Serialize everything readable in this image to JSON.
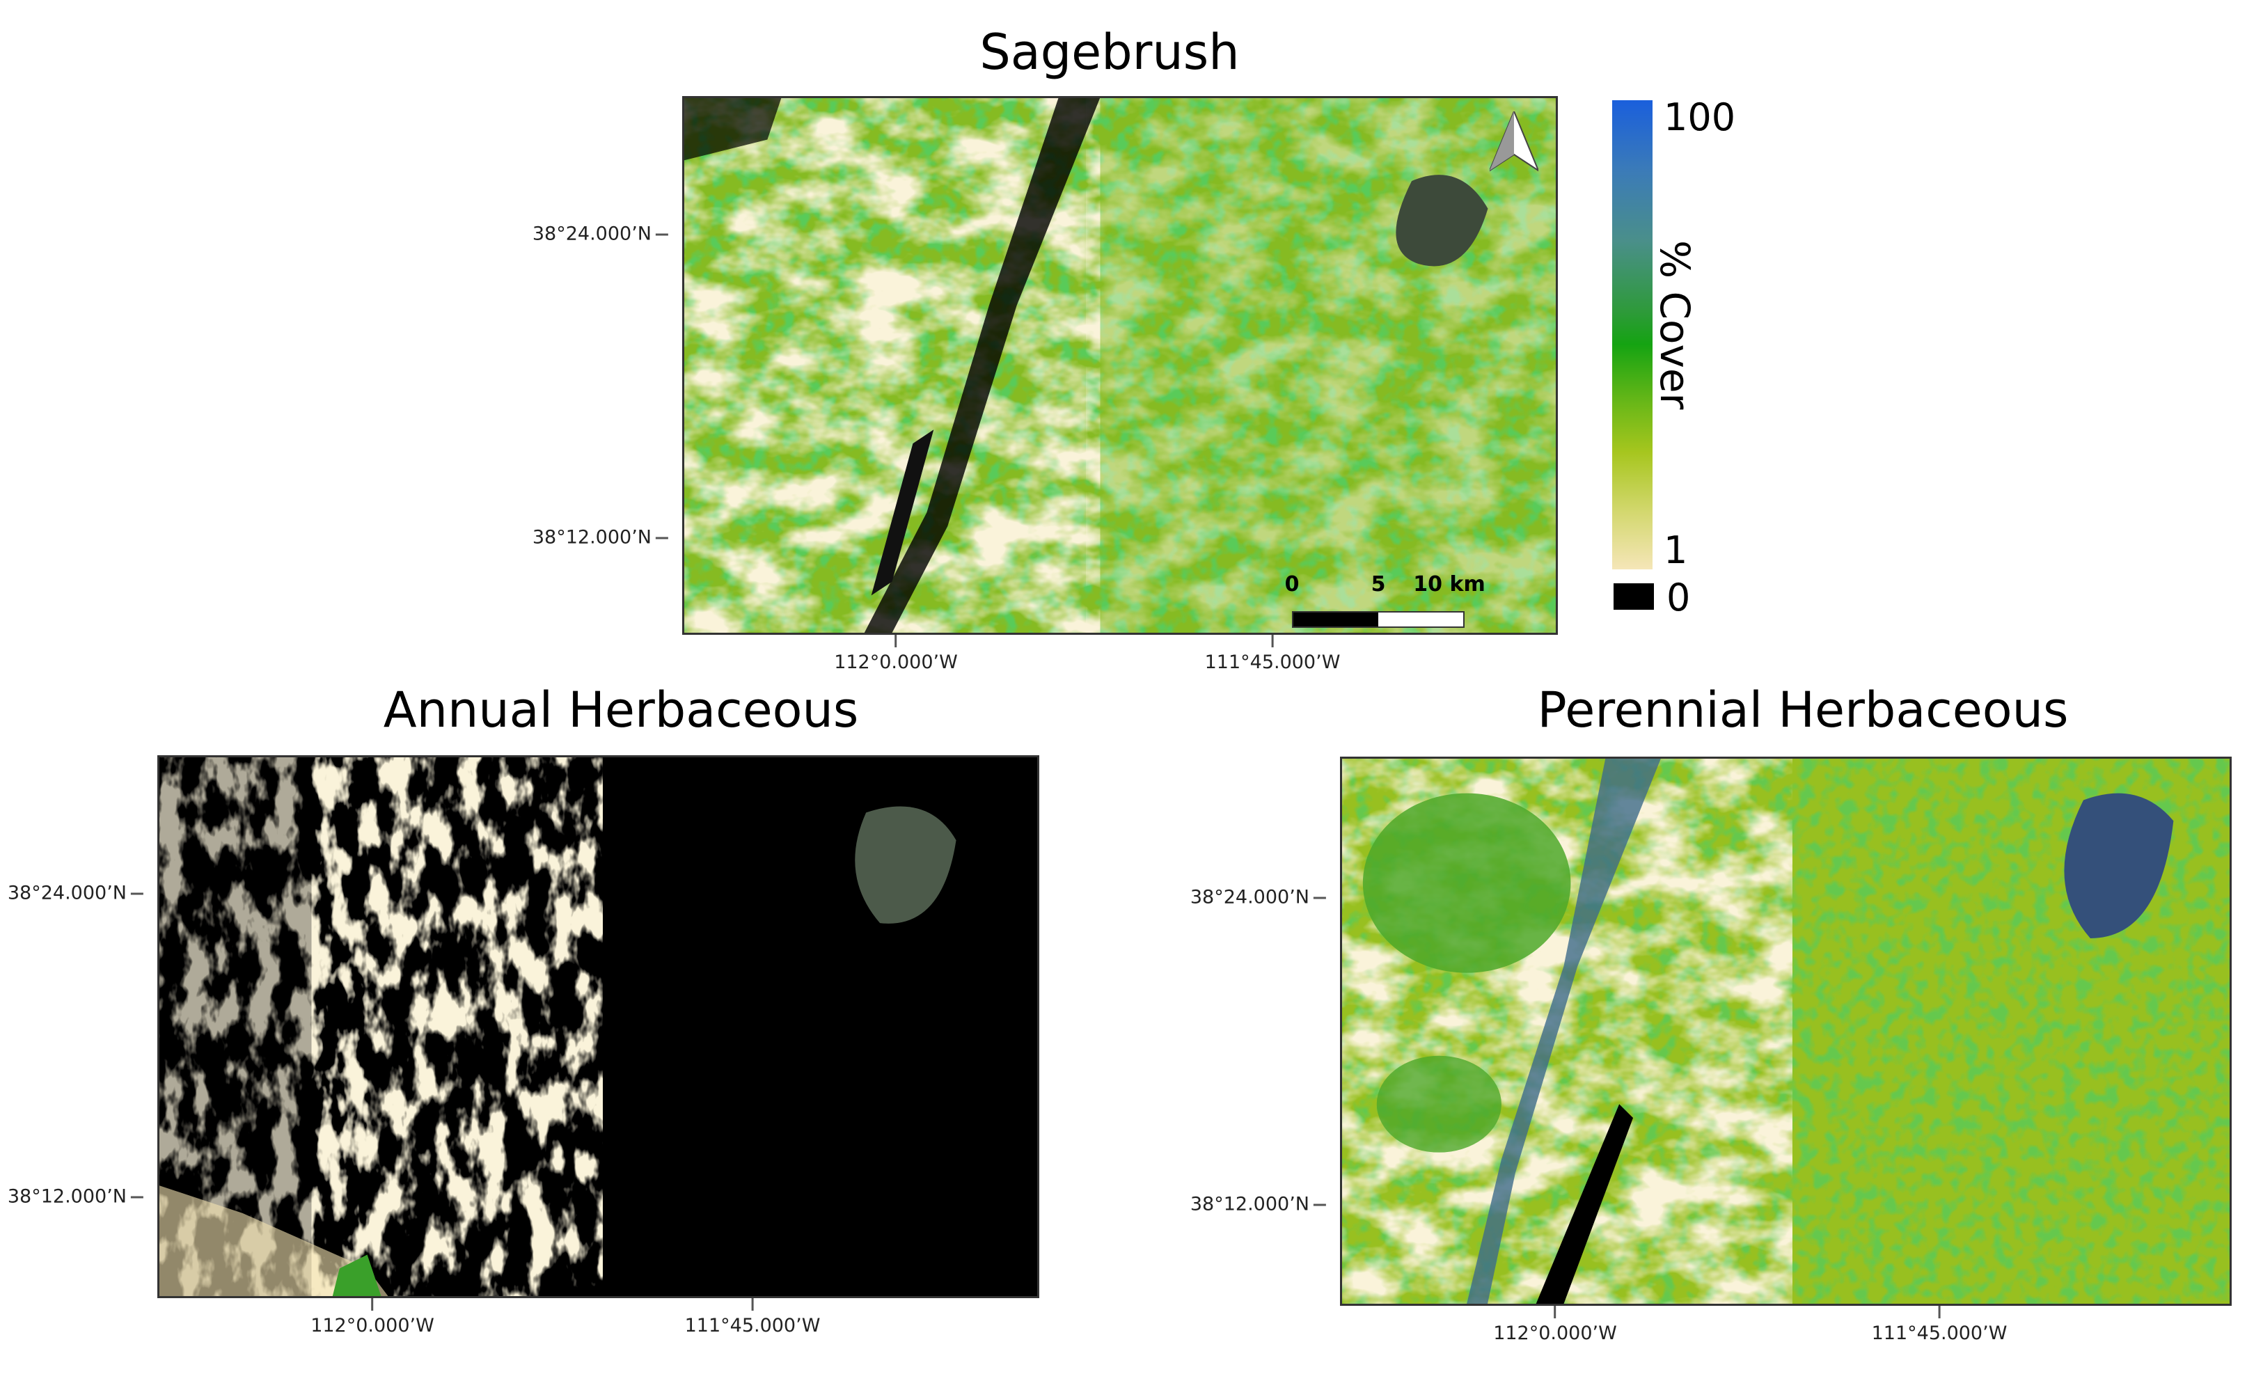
{
  "panels": [
    {
      "title": "Sagebrush",
      "lat_ticks": [
        "38°24.000’N",
        "38°12.000’N"
      ],
      "lon_ticks": [
        "112°0.000’W",
        "111°45.000’W"
      ],
      "base_color": "#8fbf2a"
    },
    {
      "title": "Annual Herbaceous",
      "lat_ticks": [
        "38°24.000’N",
        "38°12.000’N"
      ],
      "lon_ticks": [
        "112°0.000’W",
        "111°45.000’W"
      ],
      "base_color": "#000000"
    },
    {
      "title": "Perennial Herbaceous",
      "lat_ticks": [
        "38°24.000’N",
        "38°12.000’N"
      ],
      "lon_ticks": [
        "112°0.000’W",
        "111°45.000’W"
      ],
      "base_color": "#9cc21e"
    }
  ],
  "legend": {
    "label": "% Cover",
    "max": "100",
    "min": "1",
    "zero": "0",
    "colors": [
      "#1a5fdc",
      "#4a8f8a",
      "#15a312",
      "#a6c61e",
      "#f5e6b8"
    ],
    "zero_color": "#000000"
  },
  "scale_bar": {
    "ticks": [
      "0",
      "5",
      "10 km"
    ]
  },
  "north_arrow": "north-arrow-icon"
}
